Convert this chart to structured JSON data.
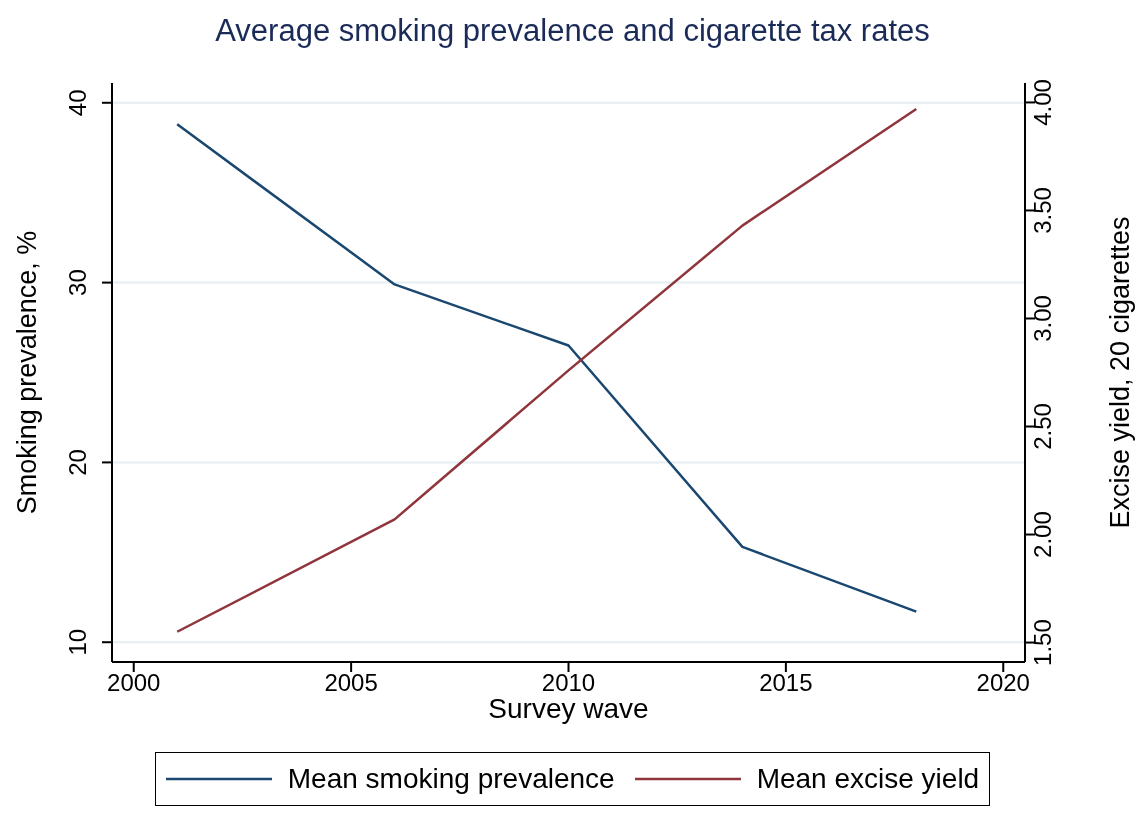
{
  "chart_data": {
    "type": "line",
    "title": "Average smoking prevalence and cigarette tax rates",
    "xlabel": "Survey wave",
    "ylabel": "Smoking prevalence, %",
    "y2label": "Excise yield, 20 cigarettes",
    "x": [
      2001,
      2006,
      2010,
      2014,
      2018
    ],
    "series": [
      {
        "name": "Mean smoking prevalence",
        "color": "#1a476f",
        "values": [
          38.8,
          29.9,
          26.5,
          15.3,
          11.7
        ]
      },
      {
        "name": "Mean excise yield",
        "color": "#90353b",
        "axis": "y2",
        "values": [
          1.55,
          2.07,
          2.76,
          3.43,
          3.97
        ]
      }
    ],
    "xlim": [
      1999.5,
      2020.5
    ],
    "xticks": [
      2000,
      2005,
      2010,
      2015,
      2020
    ],
    "ylim": [
      8.9,
      41.1
    ],
    "yticks": [
      10,
      20,
      30,
      40
    ],
    "y2lim": [
      1.41,
      4.09
    ],
    "y2ticks": [
      {
        "value": 1.5,
        "label": "1.50"
      },
      {
        "value": 2,
        "label": "2.00"
      },
      {
        "value": 2.5,
        "label": "2.50"
      },
      {
        "value": 3,
        "label": "3.00"
      },
      {
        "value": 3.5,
        "label": "3.50"
      },
      {
        "value": 4,
        "label": "4.00"
      }
    ],
    "grid": "y",
    "legend": "bottom",
    "line_style": "solid"
  }
}
